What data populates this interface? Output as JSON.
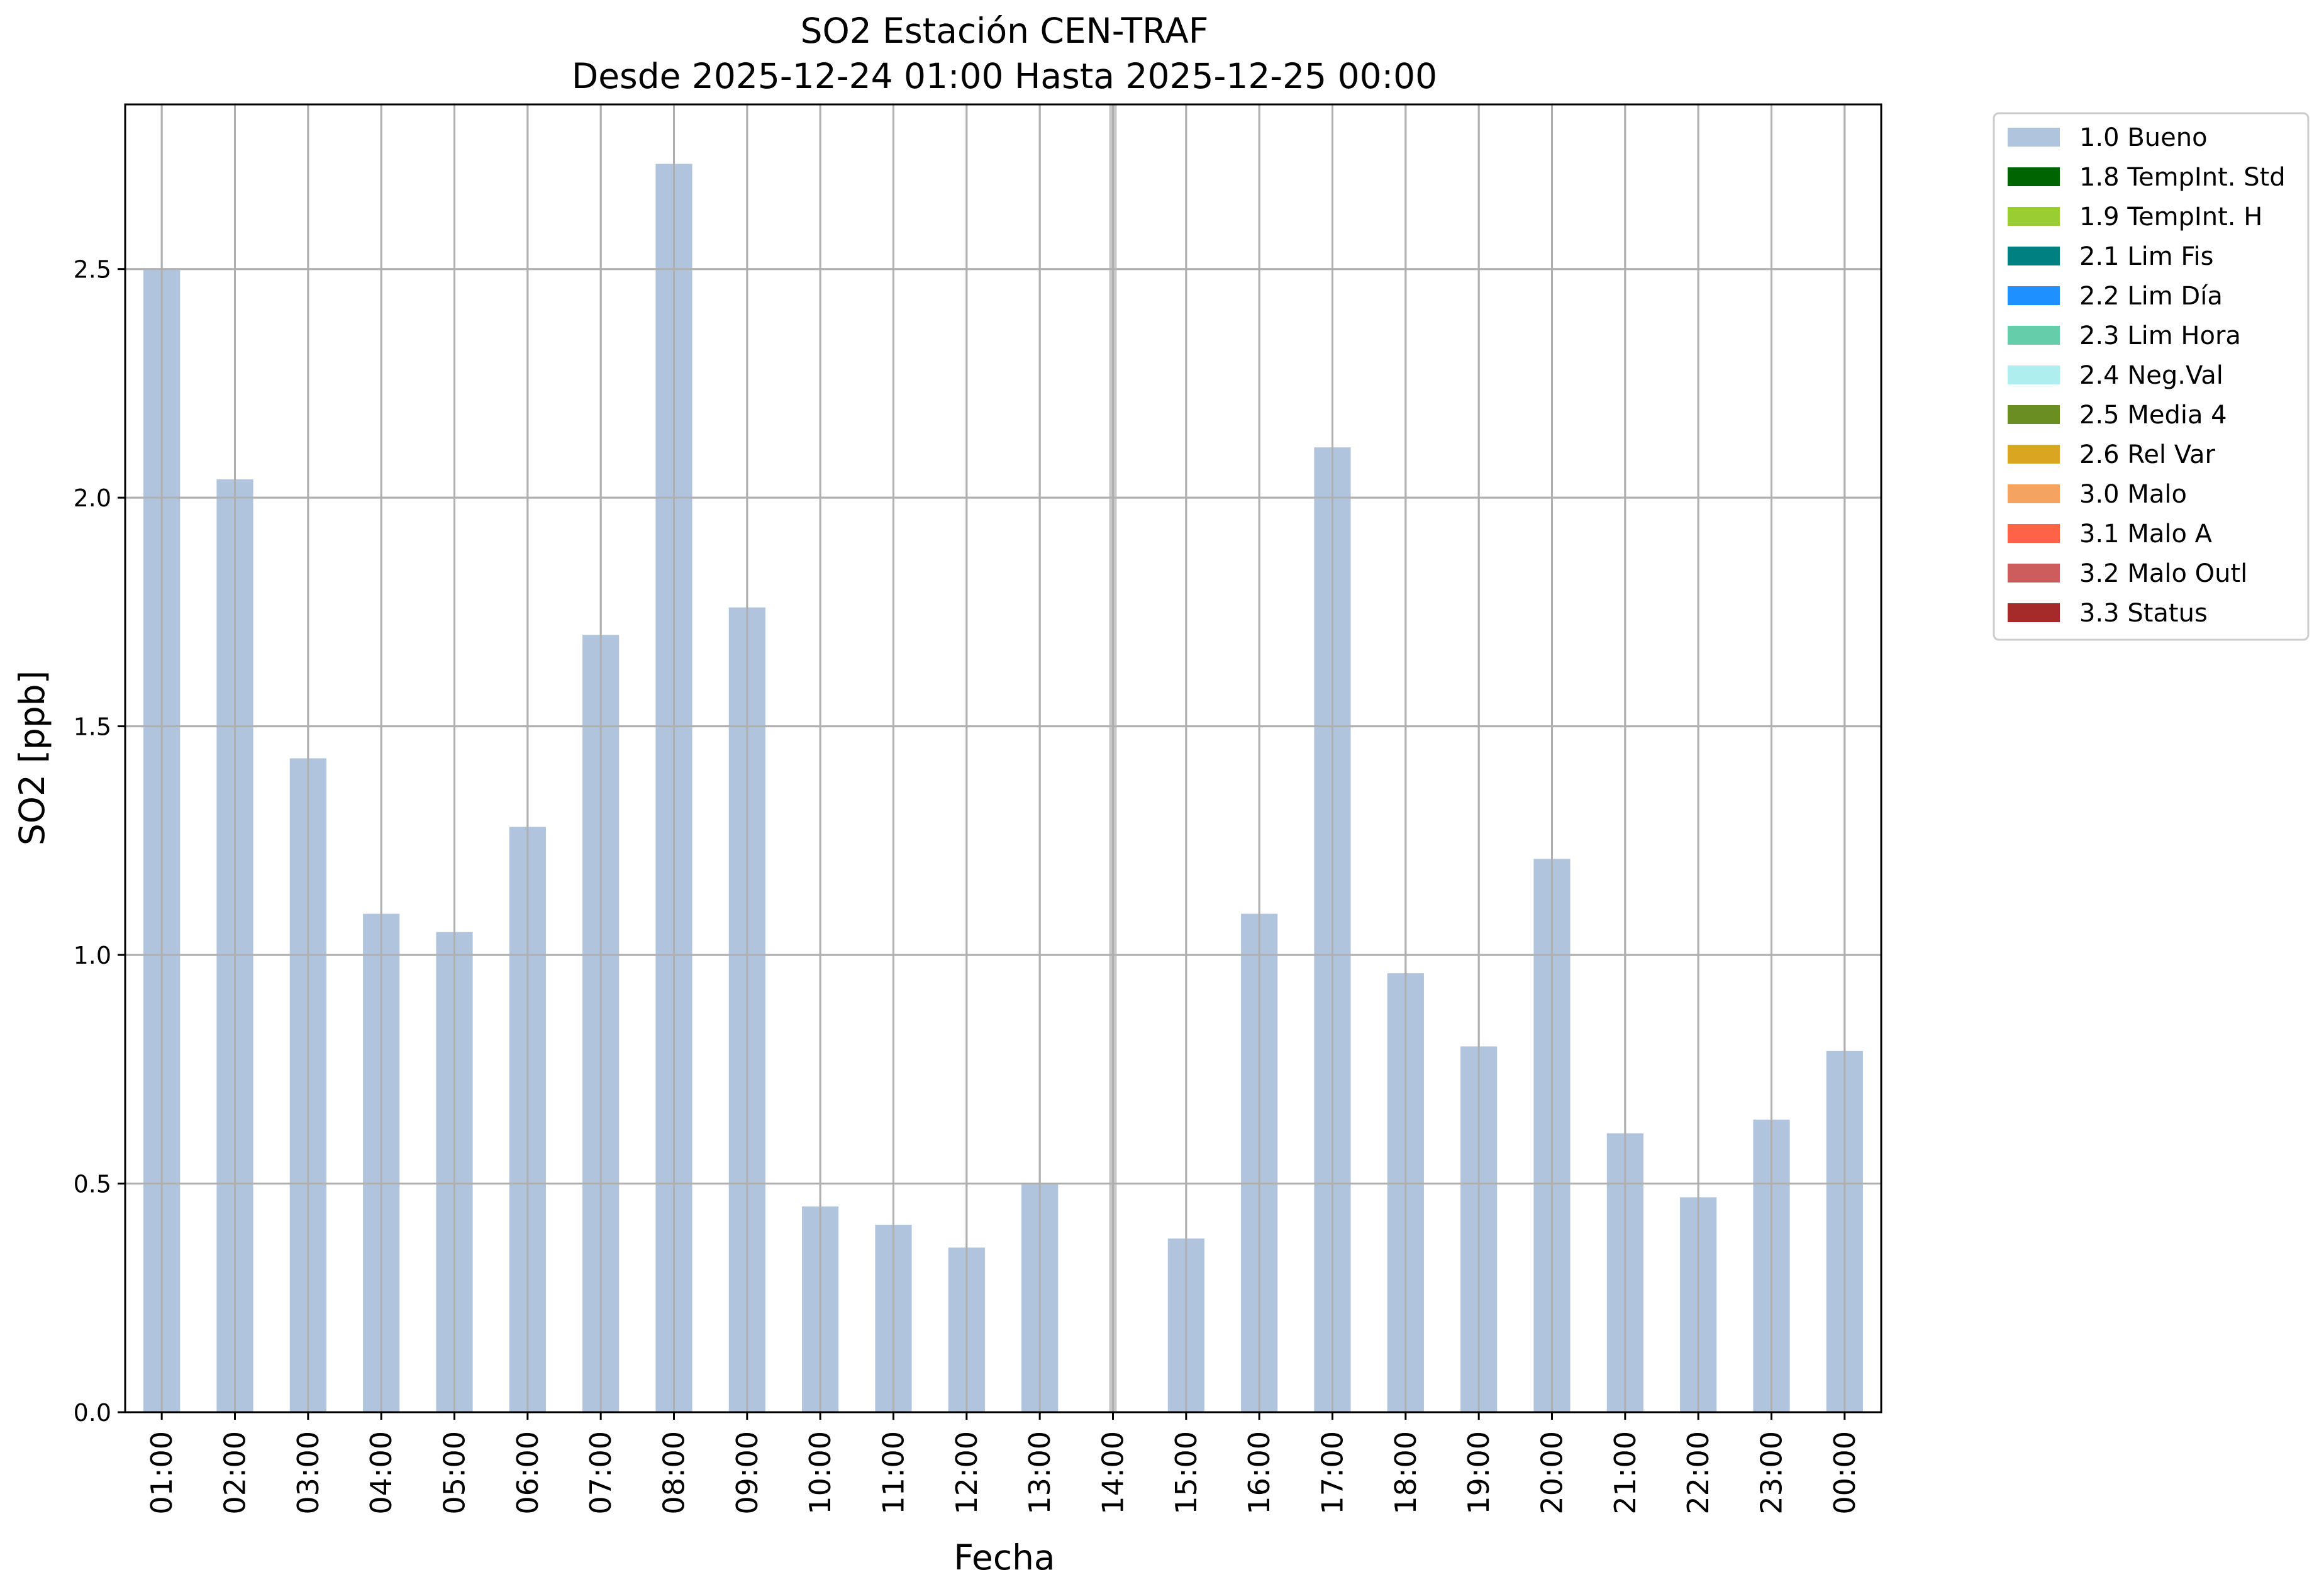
{
  "chart_data": {
    "type": "bar",
    "title": "SO2 Estación CEN-TRAF",
    "subtitle": "Desde 2025-12-24 01:00 Hasta 2025-12-25 00:00",
    "xlabel": "Fecha",
    "ylabel": "SO2 [ppb]",
    "ylim": [
      0,
      2.86
    ],
    "yticks": [
      "0.0",
      "0.5",
      "1.0",
      "1.5",
      "2.0",
      "2.5"
    ],
    "grid": true,
    "legend_placement": "outside-top-right",
    "categories": [
      "01:00",
      "02:00",
      "03:00",
      "04:00",
      "05:00",
      "06:00",
      "07:00",
      "08:00",
      "09:00",
      "10:00",
      "11:00",
      "12:00",
      "13:00",
      "14:00",
      "15:00",
      "16:00",
      "17:00",
      "18:00",
      "19:00",
      "20:00",
      "21:00",
      "22:00",
      "23:00",
      "00:00"
    ],
    "series": [
      {
        "name": "1.0 Bueno",
        "color": "#b0c4de",
        "values": [
          2.5,
          2.04,
          1.43,
          1.09,
          1.05,
          1.28,
          1.7,
          2.73,
          1.76,
          0.45,
          0.41,
          0.36,
          0.5,
          null,
          0.38,
          1.09,
          2.11,
          0.96,
          0.8,
          1.21,
          0.61,
          0.47,
          0.64,
          0.79
        ]
      }
    ],
    "missing_marker": {
      "category": "14:00",
      "color": "#c8c8c8"
    },
    "legend": [
      {
        "label": "1.0 Bueno",
        "color": "#b0c4de"
      },
      {
        "label": "1.8 TempInt. Std",
        "color": "#006400"
      },
      {
        "label": "1.9 TempInt. H",
        "color": "#9acd32"
      },
      {
        "label": "2.1 Lim Fis",
        "color": "#008080"
      },
      {
        "label": "2.2 Lim Día",
        "color": "#1e90ff"
      },
      {
        "label": "2.3 Lim Hora",
        "color": "#66cdaa"
      },
      {
        "label": "2.4 Neg.Val",
        "color": "#afeeee"
      },
      {
        "label": "2.5 Media 4",
        "color": "#6b8e23"
      },
      {
        "label": "2.6 Rel Var",
        "color": "#daa520"
      },
      {
        "label": "3.0 Malo",
        "color": "#f4a460"
      },
      {
        "label": "3.1 Malo A",
        "color": "#ff6347"
      },
      {
        "label": "3.2 Malo Outl",
        "color": "#cd5c5c"
      },
      {
        "label": "3.3 Status",
        "color": "#a52a2a"
      }
    ]
  }
}
